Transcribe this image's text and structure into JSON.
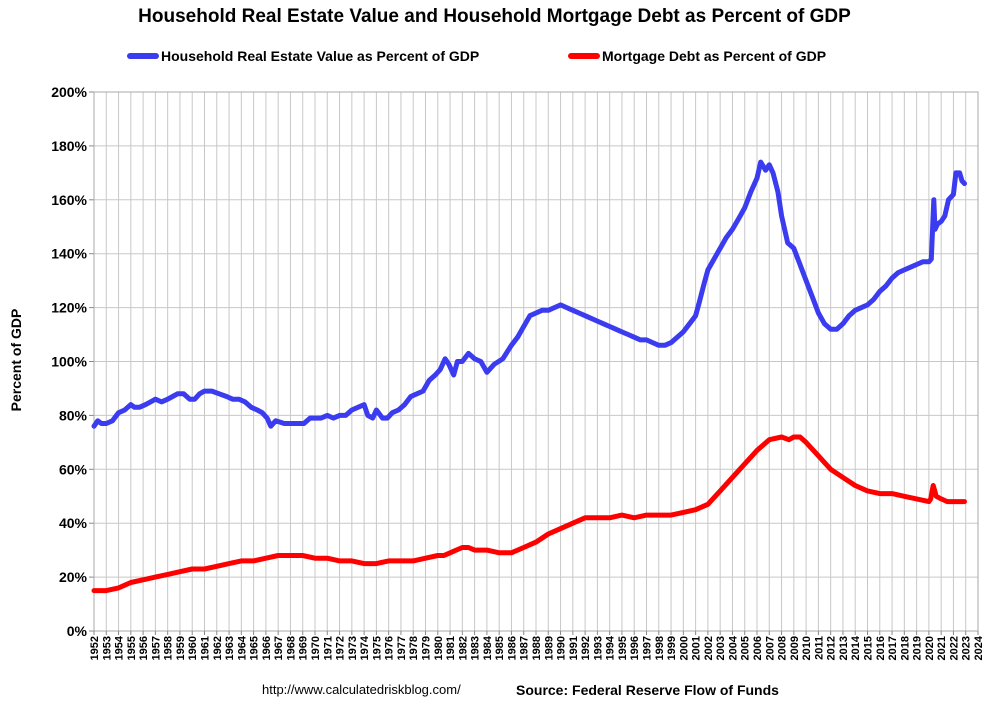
{
  "chart_data": {
    "type": "line",
    "title": "Household Real Estate Value and Household Mortgage Debt as Percent of GDP",
    "ylabel": "Percent of GDP",
    "xlabel": "",
    "ylim": [
      0,
      200
    ],
    "y_ticks": [
      "0%",
      "20%",
      "40%",
      "60%",
      "80%",
      "100%",
      "120%",
      "140%",
      "160%",
      "180%",
      "200%"
    ],
    "x_range": [
      1952,
      2024
    ],
    "x_ticks": [
      "1952",
      "1953",
      "1954",
      "1955",
      "1956",
      "1957",
      "1958",
      "1959",
      "1960",
      "1961",
      "1962",
      "1963",
      "1964",
      "1965",
      "1966",
      "1967",
      "1968",
      "1969",
      "1970",
      "1971",
      "1972",
      "1973",
      "1974",
      "1975",
      "1976",
      "1977",
      "1978",
      "1979",
      "1980",
      "1981",
      "1982",
      "1983",
      "1984",
      "1985",
      "1986",
      "1987",
      "1988",
      "1989",
      "1990",
      "1991",
      "1992",
      "1993",
      "1994",
      "1995",
      "1996",
      "1997",
      "1998",
      "1999",
      "2000",
      "2001",
      "2002",
      "2003",
      "2004",
      "2005",
      "2006",
      "2007",
      "2008",
      "2009",
      "2010",
      "2011",
      "2012",
      "2013",
      "2014",
      "2015",
      "2016",
      "2017",
      "2018",
      "2019",
      "2020",
      "2021",
      "2022",
      "2023",
      "2024"
    ],
    "grid": true,
    "legend_position": "top",
    "series": [
      {
        "name": "Household Real Estate Value as Percent of GDP",
        "color": "#3b3bf0",
        "x": [
          1952.0,
          1952.3,
          1952.6,
          1953.0,
          1953.5,
          1954.0,
          1954.5,
          1955.0,
          1955.3,
          1955.7,
          1956.2,
          1956.6,
          1957.0,
          1957.5,
          1958.0,
          1958.4,
          1958.8,
          1959.3,
          1959.8,
          1960.2,
          1960.6,
          1961.0,
          1961.6,
          1962.2,
          1962.8,
          1963.3,
          1963.8,
          1964.3,
          1964.8,
          1965.3,
          1965.7,
          1966.1,
          1966.4,
          1966.8,
          1967.5,
          1968.2,
          1968.8,
          1969.1,
          1969.6,
          1970.0,
          1970.5,
          1971.0,
          1971.5,
          1972.0,
          1972.5,
          1973.0,
          1973.5,
          1974.0,
          1974.3,
          1974.7,
          1975.0,
          1975.5,
          1975.9,
          1976.3,
          1976.8,
          1977.3,
          1977.8,
          1978.3,
          1978.8,
          1979.3,
          1979.8,
          1980.2,
          1980.6,
          1980.9,
          1981.3,
          1981.6,
          1982.0,
          1982.5,
          1983.0,
          1983.5,
          1984.0,
          1984.6,
          1985.3,
          1986.0,
          1986.5,
          1987.0,
          1987.5,
          1988.0,
          1988.5,
          1989.0,
          1989.5,
          1990.0,
          1990.5,
          1991.0,
          1991.5,
          1992.0,
          1992.5,
          1993.0,
          1993.5,
          1994.0,
          1994.5,
          1995.0,
          1995.5,
          1996.0,
          1996.5,
          1997.0,
          1997.5,
          1998.0,
          1998.5,
          1999.0,
          1999.5,
          2000.0,
          2000.5,
          2001.0,
          2001.3,
          2001.7,
          2002.0,
          2002.5,
          2003.0,
          2003.5,
          2004.0,
          2004.5,
          2005.0,
          2005.5,
          2006.0,
          2006.3,
          2006.7,
          2007.0,
          2007.3,
          2007.7,
          2008.0,
          2008.5,
          2009.0,
          2009.5,
          2010.0,
          2010.5,
          2011.0,
          2011.5,
          2012.0,
          2012.5,
          2013.0,
          2013.5,
          2014.0,
          2014.5,
          2015.0,
          2015.5,
          2016.0,
          2016.5,
          2017.0,
          2017.5,
          2018.0,
          2018.5,
          2019.0,
          2019.5,
          2020.0,
          2020.2,
          2020.4,
          2020.5,
          2020.7,
          2021.0,
          2021.3,
          2021.6,
          2022.0,
          2022.2,
          2022.5,
          2022.7,
          2022.9
        ],
        "y": [
          76,
          78,
          77,
          77,
          78,
          81,
          82,
          84,
          83,
          83,
          84,
          85,
          86,
          85,
          86,
          87,
          88,
          88,
          86,
          86,
          88,
          89,
          89,
          88,
          87,
          86,
          86,
          85,
          83,
          82,
          81,
          79,
          76,
          78,
          77,
          77,
          77,
          77,
          79,
          79,
          79,
          80,
          79,
          80,
          80,
          82,
          83,
          84,
          80,
          79,
          82,
          79,
          79,
          81,
          82,
          84,
          87,
          88,
          89,
          93,
          95,
          97,
          101,
          99,
          95,
          100,
          100,
          103,
          101,
          100,
          96,
          99,
          101,
          106,
          109,
          113,
          117,
          118,
          119,
          119,
          120,
          121,
          120,
          119,
          118,
          117,
          116,
          115,
          114,
          113,
          112,
          111,
          110,
          109,
          108,
          108,
          107,
          106,
          106,
          107,
          109,
          111,
          114,
          117,
          122,
          129,
          134,
          138,
          142,
          146,
          149,
          153,
          157,
          163,
          168,
          174,
          171,
          173,
          170,
          163,
          154,
          144,
          142,
          136,
          130,
          124,
          118,
          114,
          112,
          112,
          114,
          117,
          119,
          120,
          121,
          123,
          126,
          128,
          131,
          133,
          134,
          135,
          136,
          137,
          137,
          138,
          160,
          149,
          151,
          152,
          154,
          160,
          162,
          170,
          170,
          167,
          166
        ]
      },
      {
        "name": "Mortgage Debt as Percent of GDP",
        "color": "#ff0000",
        "x": [
          1952.0,
          1953.0,
          1954.0,
          1955.0,
          1956.0,
          1957.0,
          1958.0,
          1959.0,
          1960.0,
          1961.0,
          1962.0,
          1963.0,
          1964.0,
          1965.0,
          1966.0,
          1967.0,
          1968.0,
          1969.0,
          1970.0,
          1971.0,
          1972.0,
          1973.0,
          1974.0,
          1975.0,
          1976.0,
          1977.0,
          1978.0,
          1979.0,
          1980.0,
          1980.5,
          1981.0,
          1981.5,
          1982.0,
          1982.5,
          1983.0,
          1984.0,
          1985.0,
          1986.0,
          1987.0,
          1988.0,
          1989.0,
          1990.0,
          1991.0,
          1992.0,
          1993.0,
          1994.0,
          1995.0,
          1996.0,
          1997.0,
          1998.0,
          1999.0,
          2000.0,
          2001.0,
          2002.0,
          2003.0,
          2004.0,
          2005.0,
          2006.0,
          2007.0,
          2008.0,
          2008.6,
          2009.0,
          2009.5,
          2010.0,
          2011.0,
          2012.0,
          2013.0,
          2014.0,
          2015.0,
          2016.0,
          2017.0,
          2018.0,
          2019.0,
          2020.0,
          2020.15,
          2020.35,
          2020.6,
          2021.0,
          2021.5,
          2022.0,
          2022.5,
          2022.9
        ],
        "y": [
          15,
          15,
          16,
          18,
          19,
          20,
          21,
          22,
          23,
          23,
          24,
          25,
          26,
          26,
          27,
          28,
          28,
          28,
          27,
          27,
          26,
          26,
          25,
          25,
          26,
          26,
          26,
          27,
          28,
          28,
          29,
          30,
          31,
          31,
          30,
          30,
          29,
          29,
          31,
          33,
          36,
          38,
          40,
          42,
          42,
          42,
          43,
          42,
          43,
          43,
          43,
          44,
          45,
          47,
          52,
          57,
          62,
          67,
          71,
          72,
          71,
          72,
          72,
          70,
          65,
          60,
          57,
          54,
          52,
          51,
          51,
          50,
          49,
          48,
          49,
          54,
          50,
          49,
          48,
          48,
          48,
          48
        ]
      }
    ]
  },
  "source": {
    "url": "http://www.calculatedriskblog.com/",
    "text": "Source: Federal Reserve Flow of Funds"
  }
}
